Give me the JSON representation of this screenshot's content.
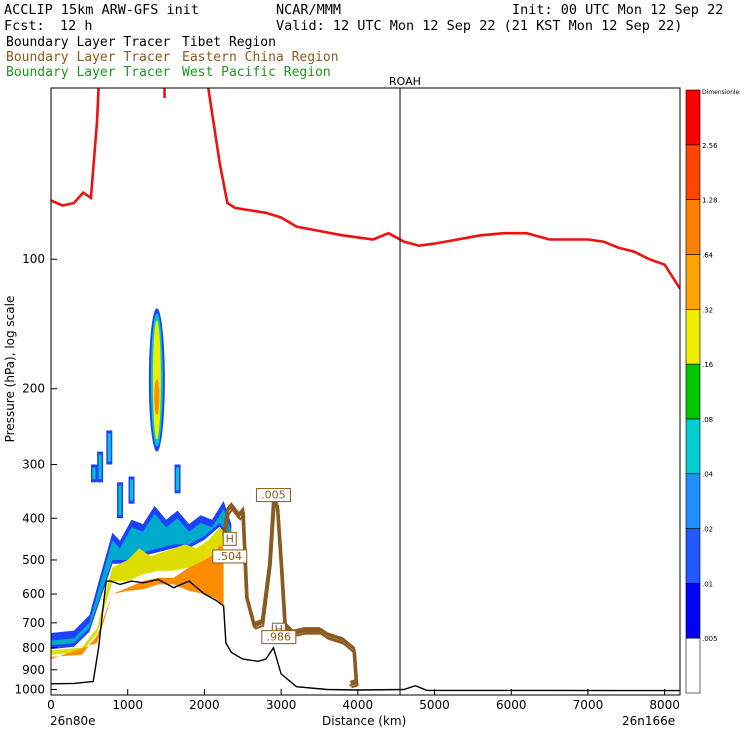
{
  "header": {
    "model": "ACCLIP 15km ARW-GFS init",
    "org": "NCAR/MMM",
    "init": "Init: 00 UTC Mon 12 Sep 22",
    "fcst_label": "Fcst:",
    "fcst_value": "12 h",
    "valid": "Valid: 12 UTC Mon 12 Sep 22 (21 KST Mon 12 Sep 22)"
  },
  "legend": [
    {
      "left": "Boundary Layer Tracer",
      "right": "Tibet Region",
      "color": "#000000"
    },
    {
      "left": "Boundary Layer Tracer",
      "right": "Eastern China Region",
      "color": "#8b5a1e"
    },
    {
      "left": "Boundary Layer Tracer",
      "right": "West Pacific Region",
      "color": "#1a9a1a"
    }
  ],
  "chart_data": {
    "type": "cross-section",
    "title": "Boundary Layer Tracer cross section",
    "xlabel": "Distance (km)",
    "ylabel": "Pressure (hPa), log scale",
    "xlim": [
      0,
      8200
    ],
    "ylim_hpa": [
      1030,
      40
    ],
    "x_ticks": [
      0,
      1000,
      2000,
      3000,
      4000,
      5000,
      6000,
      7000,
      8000
    ],
    "y_ticks": [
      1000,
      900,
      800,
      700,
      600,
      500,
      400,
      300,
      200,
      100
    ],
    "start_label": "26n80e",
    "end_label": "26n166e",
    "marker": {
      "label": "ROAH",
      "x": 4550
    },
    "tropopause": [
      [
        0,
        73
      ],
      [
        150,
        75
      ],
      [
        300,
        74
      ],
      [
        420,
        70
      ],
      [
        520,
        72
      ],
      [
        600,
        48
      ],
      [
        660,
        28
      ],
      [
        720,
        18
      ],
      [
        780,
        22
      ],
      [
        840,
        30
      ],
      [
        1000,
        28
      ],
      [
        1100,
        25
      ],
      [
        1200,
        22
      ],
      [
        1400,
        20
      ],
      [
        1500,
        27
      ],
      [
        1600,
        32
      ],
      [
        1700,
        25
      ],
      [
        1900,
        27
      ],
      [
        2050,
        40
      ],
      [
        2200,
        60
      ],
      [
        2300,
        74
      ],
      [
        2400,
        76
      ],
      [
        2600,
        77
      ],
      [
        2800,
        78
      ],
      [
        3000,
        80
      ],
      [
        3200,
        84
      ],
      [
        3500,
        86
      ],
      [
        3800,
        88
      ],
      [
        4000,
        89
      ],
      [
        4200,
        90
      ],
      [
        4400,
        87
      ],
      [
        4600,
        91
      ],
      [
        4800,
        93
      ],
      [
        5000,
        92
      ],
      [
        5300,
        90
      ],
      [
        5600,
        88
      ],
      [
        5900,
        87
      ],
      [
        6200,
        87
      ],
      [
        6500,
        90
      ],
      [
        6800,
        90
      ],
      [
        7000,
        90
      ],
      [
        7200,
        91
      ],
      [
        7400,
        94
      ],
      [
        7600,
        96
      ],
      [
        7800,
        100
      ],
      [
        8000,
        103
      ],
      [
        8200,
        117
      ]
    ],
    "terrain": [
      [
        0,
        970
      ],
      [
        300,
        968
      ],
      [
        550,
        958
      ],
      [
        620,
        800
      ],
      [
        680,
        640
      ],
      [
        720,
        560
      ],
      [
        780,
        560
      ],
      [
        900,
        570
      ],
      [
        1050,
        560
      ],
      [
        1200,
        565
      ],
      [
        1400,
        555
      ],
      [
        1600,
        580
      ],
      [
        1800,
        560
      ],
      [
        2000,
        600
      ],
      [
        2150,
        620
      ],
      [
        2250,
        640
      ],
      [
        2280,
        780
      ],
      [
        2350,
        820
      ],
      [
        2500,
        850
      ],
      [
        2700,
        860
      ],
      [
        2800,
        850
      ],
      [
        2900,
        800
      ],
      [
        3000,
        920
      ],
      [
        3200,
        985
      ],
      [
        3600,
        1000
      ],
      [
        4000,
        1003
      ],
      [
        4600,
        1000
      ],
      [
        4750,
        980
      ],
      [
        4900,
        1005
      ],
      [
        5500,
        1005
      ],
      [
        6500,
        1005
      ],
      [
        7500,
        1006
      ],
      [
        8200,
        1006
      ]
    ],
    "tracer_layers": [
      {
        "level": 0.64,
        "color": "#ff8c00",
        "upper": [
          [
            0,
            840
          ],
          [
            400,
            830
          ],
          [
            600,
            750
          ],
          [
            800,
            600
          ],
          [
            1000,
            580
          ],
          [
            1200,
            560
          ],
          [
            1400,
            550
          ],
          [
            1600,
            550
          ],
          [
            1800,
            520
          ],
          [
            2000,
            500
          ],
          [
            2150,
            480
          ],
          [
            2200,
            460
          ],
          [
            2250,
            470
          ]
        ],
        "lower": [
          [
            0,
            850
          ],
          [
            600,
            780
          ],
          [
            800,
            600
          ],
          [
            1000,
            590
          ],
          [
            1200,
            585
          ],
          [
            1400,
            570
          ],
          [
            1600,
            570
          ],
          [
            1800,
            590
          ],
          [
            2000,
            600
          ],
          [
            2150,
            615
          ],
          [
            2250,
            640
          ]
        ]
      },
      {
        "level": 0.32,
        "color": "#dddd00",
        "upper": [
          [
            0,
            810
          ],
          [
            400,
            800
          ],
          [
            600,
            720
          ],
          [
            700,
            610
          ],
          [
            800,
            520
          ],
          [
            1000,
            500
          ],
          [
            1150,
            470
          ],
          [
            1300,
            490
          ],
          [
            1450,
            480
          ],
          [
            1600,
            470
          ],
          [
            1750,
            460
          ],
          [
            1900,
            470
          ],
          [
            2050,
            450
          ],
          [
            2200,
            420
          ],
          [
            2300,
            440
          ]
        ],
        "lower": [
          [
            0,
            830
          ],
          [
            400,
            820
          ],
          [
            600,
            740
          ],
          [
            800,
            560
          ],
          [
            1000,
            560
          ],
          [
            1200,
            540
          ],
          [
            1400,
            530
          ],
          [
            1600,
            530
          ],
          [
            1800,
            520
          ],
          [
            2000,
            500
          ],
          [
            2200,
            470
          ],
          [
            2300,
            460
          ]
        ]
      },
      {
        "level": 0.08,
        "color": "#00aacc",
        "upper": [
          [
            0,
            770
          ],
          [
            300,
            760
          ],
          [
            500,
            700
          ],
          [
            650,
            560
          ],
          [
            800,
            450
          ],
          [
            900,
            470
          ],
          [
            1050,
            420
          ],
          [
            1200,
            430
          ],
          [
            1350,
            390
          ],
          [
            1500,
            420
          ],
          [
            1650,
            400
          ],
          [
            1800,
            430
          ],
          [
            1950,
            410
          ],
          [
            2100,
            420
          ],
          [
            2250,
            380
          ],
          [
            2350,
            430
          ]
        ],
        "lower": [
          [
            0,
            790
          ],
          [
            300,
            780
          ],
          [
            500,
            720
          ],
          [
            650,
            600
          ],
          [
            800,
            500
          ],
          [
            1000,
            500
          ],
          [
            1200,
            480
          ],
          [
            1400,
            470
          ],
          [
            1600,
            460
          ],
          [
            1800,
            460
          ],
          [
            2000,
            440
          ],
          [
            2200,
            410
          ],
          [
            2350,
            450
          ]
        ]
      }
    ],
    "tracer_plume": {
      "x": 1380,
      "p_top": 130,
      "p_bottom": 280,
      "core_top": 190,
      "core_bottom": 230
    },
    "east_china_contours": [
      [
        2250,
        430
      ],
      [
        2300,
        380
      ],
      [
        2350,
        370
      ],
      [
        2450,
        390
      ],
      [
        2500,
        380
      ],
      [
        2550,
        600
      ],
      [
        2650,
        700
      ],
      [
        2750,
        690
      ],
      [
        2850,
        500
      ],
      [
        2900,
        360
      ],
      [
        2950,
        370
      ],
      [
        3000,
        500
      ],
      [
        3050,
        700
      ],
      [
        3150,
        730
      ],
      [
        3300,
        720
      ],
      [
        3500,
        720
      ],
      [
        3600,
        740
      ],
      [
        3800,
        760
      ],
      [
        3950,
        800
      ],
      [
        3980,
        950
      ],
      [
        3900,
        960
      ]
    ],
    "labels": [
      {
        "text": ".005",
        "x": 2900,
        "p": 360
      },
      {
        "text": "H",
        "x": 2970,
        "p": 740
      },
      {
        "text": ".986",
        "x": 2970,
        "p": 770
      },
      {
        "text": "H",
        "x": 2330,
        "p": 455
      },
      {
        "text": ".504",
        "x": 2330,
        "p": 500
      }
    ],
    "colorbar": {
      "title": "Dimensionless",
      "levels": [
        ".005",
        ".01",
        ".02",
        ".04",
        ".08",
        ".16",
        ".32",
        ".64",
        "1.28",
        "2.56"
      ],
      "colors": [
        "#ffffff",
        "#0000ff",
        "#1e5aff",
        "#1e90ff",
        "#00cdcd",
        "#00c800",
        "#eeee00",
        "#ffa500",
        "#ff7f00",
        "#ff4500",
        "#ff0000"
      ]
    }
  }
}
